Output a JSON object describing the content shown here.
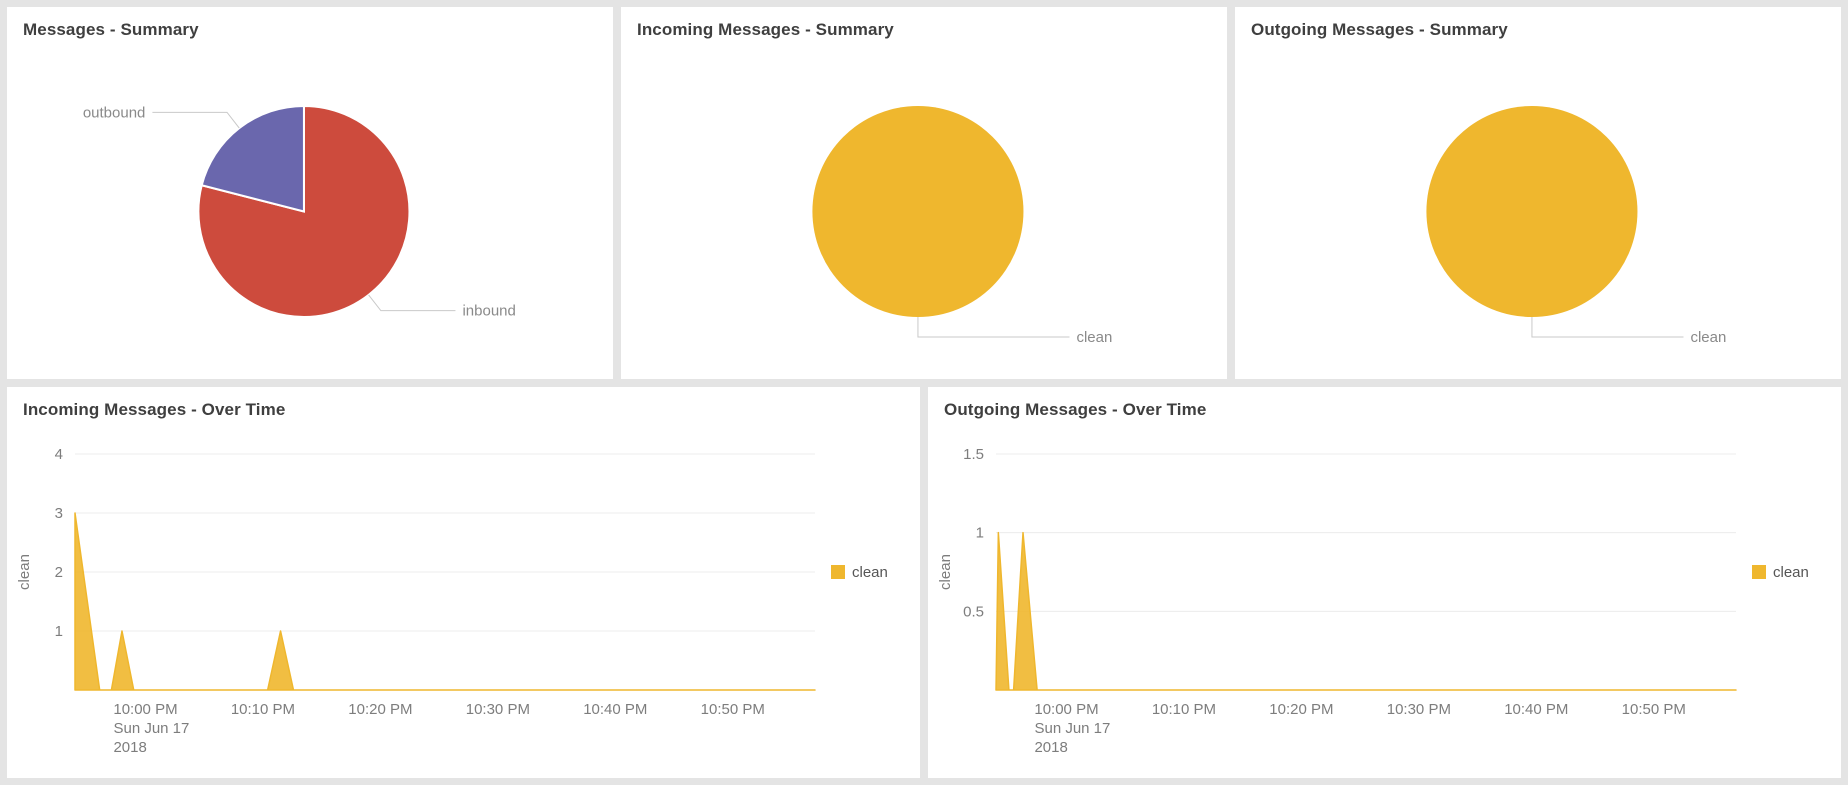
{
  "colors": {
    "clean": "#EFB72E",
    "inbound": "#CD4B3D",
    "outbound": "#6A67AD",
    "background": "#E4E4E4",
    "card": "#FFFFFF",
    "grid": "#ECECEC",
    "axis_line": "#CFCFCF",
    "leader_line": "#C9C9C9",
    "label_text": "#8A8A8A",
    "axis_text": "#7D7D7D",
    "title_text": "#3F3F3F",
    "legend_text": "#565656"
  },
  "chart_data": [
    {
      "type": "pie",
      "title": "Messages - Summary",
      "start_angle": "top",
      "direction": "clockwise",
      "slices": [
        {
          "label": "inbound",
          "value": 79,
          "color_key": "inbound"
        },
        {
          "label": "outbound",
          "value": 21,
          "color_key": "outbound"
        }
      ]
    },
    {
      "type": "pie",
      "title": "Incoming Messages - Summary",
      "start_angle": "top",
      "direction": "clockwise",
      "slices": [
        {
          "label": "clean",
          "value": 100,
          "color_key": "clean"
        }
      ]
    },
    {
      "type": "pie",
      "title": "Outgoing Messages - Summary",
      "start_angle": "top",
      "direction": "clockwise",
      "slices": [
        {
          "label": "clean",
          "value": 100,
          "color_key": "clean"
        }
      ]
    },
    {
      "type": "area",
      "title": "Incoming Messages - Over Time",
      "ylabel": "clean",
      "ymax": 4,
      "yticks": [
        1,
        2,
        3,
        4
      ],
      "x_unit": "minutes_from_10:00_PM",
      "xmin": -6,
      "xmax": 57,
      "xticks": [
        {
          "t": 0,
          "label": "10:00 PM",
          "sublines": [
            "Sun Jun 17",
            "2018"
          ]
        },
        {
          "t": 10,
          "label": "10:10 PM"
        },
        {
          "t": 20,
          "label": "10:20 PM"
        },
        {
          "t": 30,
          "label": "10:30 PM"
        },
        {
          "t": 40,
          "label": "10:40 PM"
        },
        {
          "t": 50,
          "label": "10:50 PM"
        }
      ],
      "series": [
        {
          "name": "clean",
          "color_key": "clean",
          "points": [
            [
              -6,
              3
            ],
            [
              -3.9,
              0
            ],
            [
              -2.9,
              0
            ],
            [
              -2,
              1
            ],
            [
              -1,
              0
            ],
            [
              10.4,
              0
            ],
            [
              11.5,
              1
            ],
            [
              12.6,
              0
            ],
            [
              57,
              0
            ]
          ]
        }
      ],
      "legend": [
        {
          "label": "clean",
          "color_key": "clean"
        }
      ]
    },
    {
      "type": "area",
      "title": "Outgoing Messages - Over Time",
      "ylabel": "clean",
      "ymax": 1.5,
      "yticks": [
        0.5,
        1,
        1.5
      ],
      "x_unit": "minutes_from_10:00_PM",
      "xmin": -6,
      "xmax": 57,
      "xticks": [
        {
          "t": 0,
          "label": "10:00 PM",
          "sublines": [
            "Sun Jun 17",
            "2018"
          ]
        },
        {
          "t": 10,
          "label": "10:10 PM"
        },
        {
          "t": 20,
          "label": "10:20 PM"
        },
        {
          "t": 30,
          "label": "10:30 PM"
        },
        {
          "t": 40,
          "label": "10:40 PM"
        },
        {
          "t": 50,
          "label": "10:50 PM"
        }
      ],
      "series": [
        {
          "name": "clean",
          "color_key": "clean",
          "points": [
            [
              -6,
              0
            ],
            [
              -5.8,
              1
            ],
            [
              -4.9,
              0
            ],
            [
              -4.5,
              0
            ],
            [
              -3.7,
              1
            ],
            [
              -2.5,
              0
            ],
            [
              57,
              0
            ]
          ]
        }
      ],
      "legend": [
        {
          "label": "clean",
          "color_key": "clean"
        }
      ]
    }
  ]
}
